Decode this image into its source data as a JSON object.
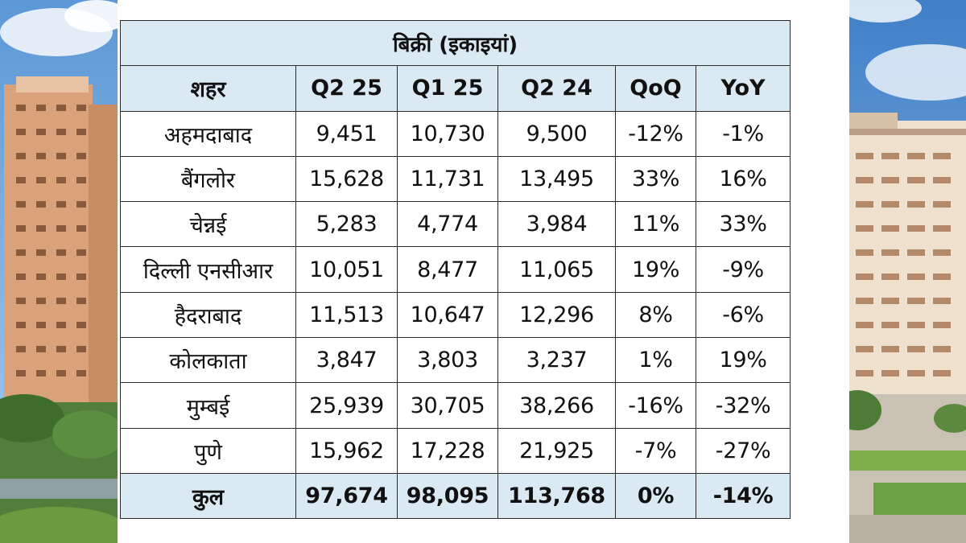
{
  "table": {
    "title": "बिक्री (इकाइयां)",
    "headers": [
      "शहर",
      "Q2 25",
      "Q1 25",
      "Q2 24",
      "QoQ",
      "YoY"
    ],
    "rows": [
      [
        "अहमदाबाद",
        "9,451",
        "10,730",
        "9,500",
        "-12%",
        "-1%"
      ],
      [
        "बैंगलोर",
        "15,628",
        "11,731",
        "13,495",
        "33%",
        "16%"
      ],
      [
        "चेन्नई",
        "5,283",
        "4,774",
        "3,984",
        "11%",
        "33%"
      ],
      [
        "दिल्ली एनसीआर",
        "10,051",
        "8,477",
        "11,065",
        "19%",
        "-9%"
      ],
      [
        "हैदराबाद",
        "11,513",
        "10,647",
        "12,296",
        "8%",
        "-6%"
      ],
      [
        "कोलकाता",
        "3,847",
        "3,803",
        "3,237",
        "1%",
        "19%"
      ],
      [
        "मुम्बई",
        "25,939",
        "30,705",
        "38,266",
        "-16%",
        "-32%"
      ],
      [
        "पुणे",
        "15,962",
        "17,228",
        "21,925",
        "-7%",
        "-27%"
      ]
    ],
    "total": [
      "कुल",
      "97,674",
      "98,095",
      "113,768",
      "0%",
      "-14%"
    ]
  },
  "colors": {
    "header_bg": "#dbe9f2",
    "border": "#2b2b2b",
    "text": "#111111"
  },
  "images": {
    "left": "building-photo",
    "right": "building-photo"
  }
}
